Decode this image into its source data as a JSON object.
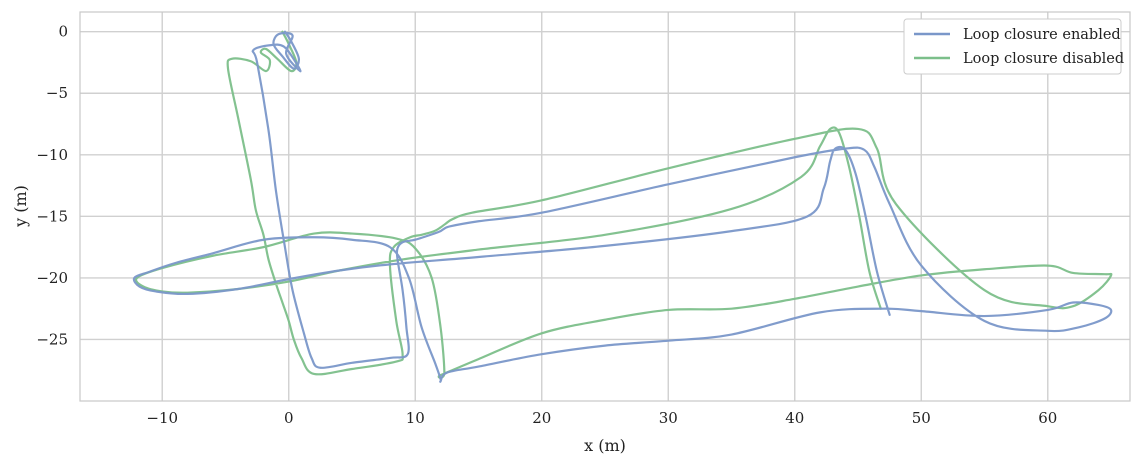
{
  "chart_data": {
    "type": "line",
    "title": "",
    "xlabel": "x (m)",
    "ylabel": "y (m)",
    "xlim": [
      -16.5,
      66.5
    ],
    "ylim": [
      -30.0,
      1.6
    ],
    "xticks": [
      -10,
      0,
      10,
      20,
      30,
      40,
      50,
      60
    ],
    "yticks": [
      0,
      -5,
      -10,
      -15,
      -20,
      -25
    ],
    "grid": true,
    "legend_position": "top-right",
    "series": [
      {
        "name": "Loop closure enabled",
        "color": "#7a97c9",
        "x": [
          -0.3,
          0.2,
          0.8,
          0.4,
          -0.5,
          -1.2,
          -0.8,
          0.3,
          -0.2,
          0.9,
          0.5,
          -0.4,
          -1.5,
          -2.8,
          -2.5,
          -1.6,
          -1.0,
          -0.3,
          0.3,
          1.2,
          1.8,
          2.5,
          5.0,
          8.0,
          9.4,
          9.3,
          9.0,
          8.6,
          8.6,
          9.0,
          10.0,
          11.5,
          12.0,
          12.3,
          12.8,
          15.0,
          20.0,
          30.0,
          40.0,
          44.0,
          45.5,
          46.3,
          47.5,
          50.0,
          55.0,
          60.0,
          62.5,
          64.5,
          65.0,
          64.0,
          62.0,
          60.0,
          55.0,
          50.0,
          47.0,
          42.0,
          35.0,
          30.0,
          25.0,
          20.0,
          15.0,
          12.5,
          12.0,
          12.0,
          11.6,
          10.5,
          9.5,
          8.0,
          5.0,
          2.0,
          -2.0,
          -6.0,
          -9.0,
          -11.0,
          -12.2,
          -11.8,
          -10.5,
          -8.0,
          -4.0,
          0.0,
          4.0,
          8.0,
          15.0,
          25.0,
          35.0,
          41.0,
          42.3,
          42.8,
          43.2,
          44.0,
          44.8,
          45.6,
          46.5,
          47.5
        ],
        "y": [
          0.0,
          -0.8,
          -2.2,
          -3.0,
          -2.0,
          -1.0,
          -0.2,
          -0.3,
          -1.8,
          -3.2,
          -2.4,
          -1.2,
          -1.1,
          -1.5,
          -2.5,
          -8.0,
          -13.0,
          -17.5,
          -21.0,
          -24.5,
          -26.5,
          -27.3,
          -26.9,
          -26.5,
          -26.2,
          -24.0,
          -21.0,
          -18.5,
          -17.6,
          -17.1,
          -16.9,
          -16.4,
          -16.2,
          -16.0,
          -15.8,
          -15.4,
          -14.7,
          -12.4,
          -10.2,
          -9.5,
          -9.6,
          -11.0,
          -14.0,
          -19.0,
          -23.5,
          -24.3,
          -24.0,
          -23.3,
          -22.6,
          -22.2,
          -22.0,
          -22.6,
          -23.1,
          -22.7,
          -22.5,
          -22.8,
          -24.6,
          -25.1,
          -25.5,
          -26.2,
          -27.2,
          -27.7,
          -28.4,
          -28.2,
          -27.0,
          -24.0,
          -20.0,
          -17.5,
          -16.9,
          -16.7,
          -16.9,
          -18.0,
          -18.8,
          -19.5,
          -20.0,
          -20.7,
          -21.1,
          -21.3,
          -20.9,
          -20.1,
          -19.4,
          -18.9,
          -18.3,
          -17.4,
          -16.2,
          -15.0,
          -12.7,
          -10.5,
          -9.5,
          -9.6,
          -11.5,
          -15.0,
          -19.5,
          -23.0
        ],
        "note": ""
      },
      {
        "name": "Loop closure disabled",
        "color": "#7cbf8a",
        "x": [
          -0.5,
          0.0,
          0.6,
          0.2,
          -0.9,
          -1.8,
          -2.2,
          -1.5,
          -1.8,
          -3.0,
          -4.5,
          -4.8,
          -4.0,
          -3.0,
          -2.6,
          -2.0,
          -1.6,
          -1.0,
          -0.5,
          0.0,
          0.4,
          1.0,
          2.0,
          5.0,
          8.5,
          9.0,
          8.5,
          8.0,
          8.3,
          9.6,
          10.5,
          11.5,
          12.0,
          12.4,
          13.0,
          14.5,
          20.0,
          30.0,
          40.0,
          45.0,
          46.5,
          48.0,
          55.0,
          60.0,
          62.0,
          64.0,
          65.0,
          64.5,
          62.0,
          60.0,
          55.0,
          50.0,
          45.0,
          40.0,
          35.0,
          30.0,
          25.0,
          20.0,
          15.0,
          12.0,
          12.3,
          12.0,
          11.3,
          10.0,
          8.5,
          5.0,
          2.0,
          -2.0,
          -6.0,
          -10.0,
          -12.0,
          -11.5,
          -10.0,
          -8.0,
          -4.0,
          0.0,
          4.0,
          9.0,
          15.0,
          25.0,
          35.0,
          40.5,
          42.0,
          42.8,
          43.5,
          44.3,
          45.1,
          45.9,
          46.8
        ],
        "y": [
          0.0,
          -1.0,
          -2.5,
          -3.2,
          -2.2,
          -1.4,
          -1.7,
          -2.3,
          -3.2,
          -2.4,
          -2.2,
          -3.0,
          -7.0,
          -12.0,
          -14.5,
          -16.5,
          -18.5,
          -20.5,
          -22.0,
          -23.5,
          -25.0,
          -26.5,
          -27.8,
          -27.4,
          -26.8,
          -26.2,
          -23.5,
          -19.0,
          -17.5,
          -16.7,
          -16.5,
          -16.2,
          -15.9,
          -15.6,
          -15.2,
          -14.7,
          -13.7,
          -11.1,
          -8.7,
          -7.9,
          -9.5,
          -14.0,
          -21.0,
          -22.3,
          -22.3,
          -21.0,
          -19.8,
          -19.7,
          -19.6,
          -19.0,
          -19.3,
          -19.8,
          -20.7,
          -21.7,
          -22.5,
          -22.6,
          -23.4,
          -24.5,
          -26.6,
          -27.9,
          -27.7,
          -24.0,
          -20.0,
          -17.6,
          -16.8,
          -16.4,
          -16.4,
          -17.5,
          -18.2,
          -19.2,
          -20.0,
          -20.7,
          -21.1,
          -21.2,
          -20.9,
          -20.3,
          -19.4,
          -18.5,
          -17.7,
          -16.5,
          -14.4,
          -11.8,
          -9.3,
          -7.9,
          -8.2,
          -11.0,
          -15.0,
          -19.5,
          -22.5
        ],
        "note": ""
      }
    ]
  }
}
